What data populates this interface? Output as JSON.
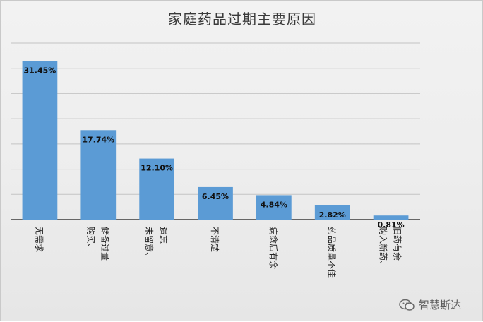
{
  "chart_data": {
    "type": "bar",
    "title": "家庭药品过期主要原因",
    "categories": [
      "无需求",
      "购买、储备过量",
      "未留意、遗忘",
      "不清楚",
      "病愈后有余",
      "药品质量不佳",
      "购入新药、旧药有余"
    ],
    "values": [
      31.45,
      17.74,
      12.1,
      6.45,
      4.84,
      2.82,
      0.81
    ],
    "data_labels": [
      "31.45%",
      "17.74%",
      "12.10%",
      "6.45%",
      "4.84%",
      "2.82%",
      "0.81%"
    ],
    "ylim": [
      0,
      35
    ],
    "grid": true,
    "legend": "none",
    "bar_color": "#5b9bd5"
  },
  "watermark": {
    "text": "智慧斯达",
    "icon": "wechat-icon"
  }
}
